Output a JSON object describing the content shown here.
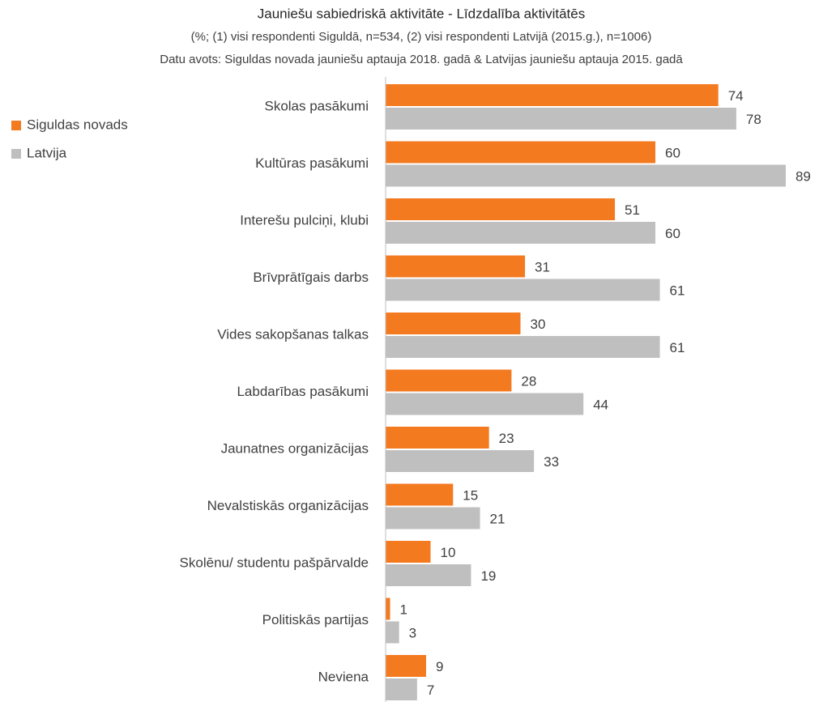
{
  "chart_data": {
    "type": "hbar",
    "title": "Jauniešu sabiedriskā aktivitāte - Līdzdalība aktivitātēs",
    "subtitle": "(%; (1) visi respondenti Siguldā, n=534, (2) visi respondenti Latvijā (2015.g.), n=1006)",
    "source": "Datu avots: Siguldas novada jauniešu aptauja 2018. gadā & Latvijas jauniešu aptauja 2015. gadā",
    "categories": [
      "Skolas pasākumi",
      "Kultūras pasākumi",
      "Interešu pulciņi, klubi",
      "Brīvprātīgais darbs",
      "Vides sakopšanas talkas",
      "Labdarības pasākumi",
      "Jaunatnes organizācijas",
      "Nevalstiskās organizācijas",
      "Skolēnu/ studentu pašpārvalde",
      "Politiskās partijas",
      "Neviena"
    ],
    "series": [
      {
        "name": "Siguldas novads",
        "color": "#f47a20",
        "values": [
          74,
          60,
          51,
          31,
          30,
          28,
          23,
          15,
          10,
          1,
          9
        ]
      },
      {
        "name": "Latvija",
        "color": "#bfbfbf",
        "values": [
          78,
          89,
          60,
          61,
          61,
          44,
          33,
          21,
          19,
          3,
          7
        ]
      }
    ],
    "legend": "left"
  }
}
